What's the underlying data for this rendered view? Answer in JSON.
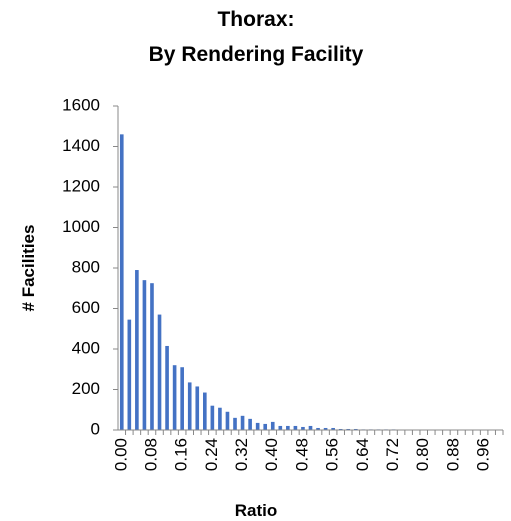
{
  "chart_data": {
    "type": "bar",
    "title_lines": [
      "Thorax:",
      "By Rendering Facility"
    ],
    "x_label": "Ratio",
    "y_label": "# Facilities",
    "categories": [
      "0.00",
      null,
      null,
      null,
      "0.08",
      null,
      null,
      null,
      "0.16",
      null,
      null,
      null,
      "0.24",
      null,
      null,
      null,
      "0.32",
      null,
      null,
      null,
      "0.40",
      null,
      null,
      null,
      "0.48",
      null,
      null,
      null,
      "0.56",
      null,
      null,
      null,
      "0.64",
      null,
      null,
      null,
      "0.72",
      null,
      null,
      null,
      "0.80",
      null,
      null,
      null,
      "0.88",
      null,
      null,
      null,
      "0.96",
      null,
      null
    ],
    "values": [
      1460,
      545,
      790,
      740,
      725,
      570,
      415,
      320,
      310,
      235,
      215,
      185,
      120,
      110,
      90,
      60,
      70,
      55,
      35,
      30,
      40,
      20,
      20,
      20,
      15,
      20,
      10,
      10,
      10,
      5,
      5,
      5,
      3,
      3,
      3,
      3,
      3,
      2,
      2,
      2,
      2,
      1,
      1,
      1,
      1,
      1,
      1,
      1,
      1,
      1,
      1
    ],
    "color": "#4472c4",
    "ylim": [
      0,
      1600
    ],
    "yticks": [
      0,
      200,
      400,
      600,
      800,
      1000,
      1200,
      1400,
      1600
    ],
    "grid": false
  }
}
